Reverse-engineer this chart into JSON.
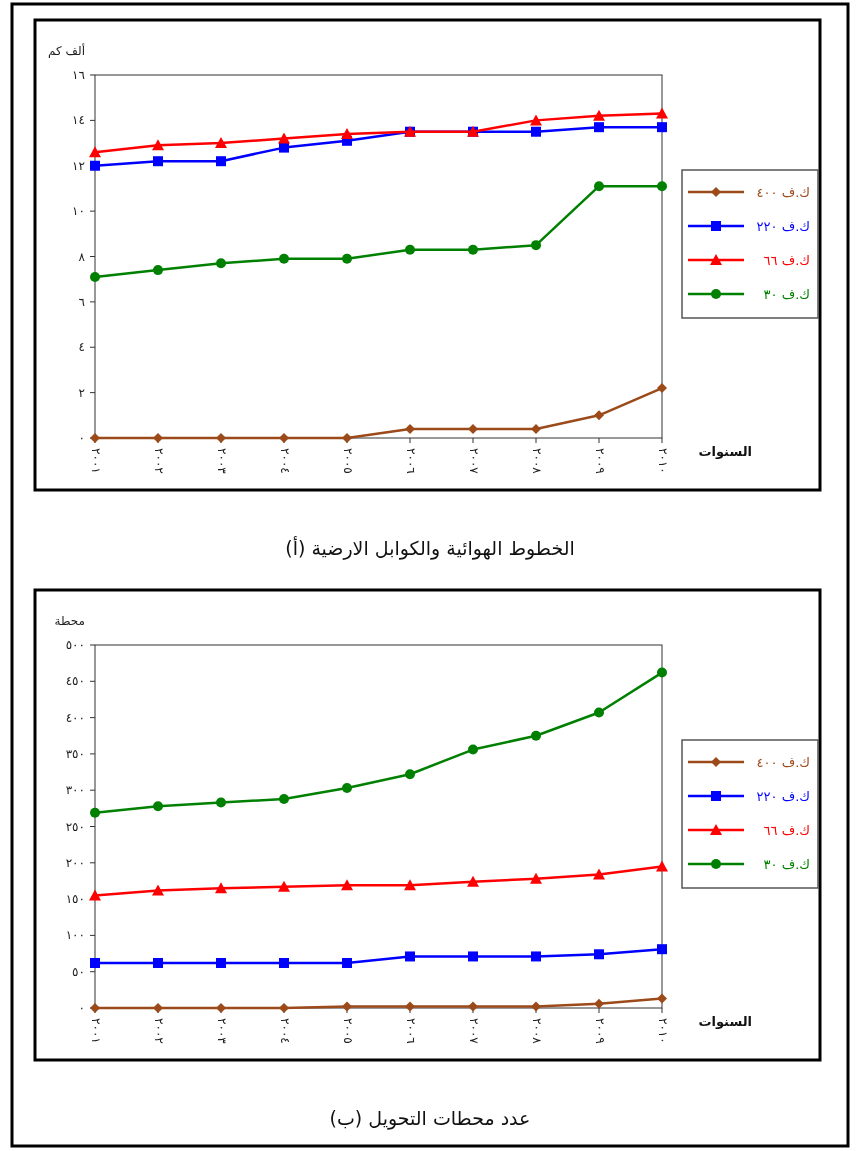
{
  "chart_data": [
    {
      "type": "line",
      "title": "(أ) الخطوط الهوائية والكوابل الارضية",
      "ylabel": "ألف كم",
      "xlabel": "السنوات",
      "categories": [
        "٢٠٠١",
        "٢٠٠٢",
        "٢٠٠٣",
        "٢٠٠٤",
        "٢٠٠٥",
        "٢٠٠٦",
        "٢٠٠٧",
        "٢٠٠٨",
        "٢٠٠٩",
        "٢٠١٠"
      ],
      "ylim": [
        0,
        16
      ],
      "yticks": [
        {
          "value": 0,
          "label": "٠"
        },
        {
          "value": 2,
          "label": "٢"
        },
        {
          "value": 4,
          "label": "٤"
        },
        {
          "value": 6,
          "label": "٦"
        },
        {
          "value": 8,
          "label": "٨"
        },
        {
          "value": 10,
          "label": "١٠"
        },
        {
          "value": 12,
          "label": "١٢"
        },
        {
          "value": 14,
          "label": "١٤"
        },
        {
          "value": 16,
          "label": "١٦"
        }
      ],
      "legend": "right",
      "line_style": "solid",
      "series": [
        {
          "name": "ك.ف ٤٠٠",
          "color": "#9c4a1a",
          "marker": "diamond",
          "values": [
            0,
            0,
            0,
            0,
            0,
            0.4,
            0.4,
            0.4,
            1.0,
            2.2
          ]
        },
        {
          "name": "ك.ف ٢٢٠",
          "color": "#0000ff",
          "marker": "square",
          "values": [
            12.0,
            12.2,
            12.2,
            12.8,
            13.1,
            13.5,
            13.5,
            13.5,
            13.7,
            13.7
          ]
        },
        {
          "name": "ك.ف ٦٦",
          "color": "#ff0000",
          "marker": "triangle",
          "values": [
            12.6,
            12.9,
            13.0,
            13.2,
            13.4,
            13.5,
            13.5,
            14.0,
            14.2,
            14.3
          ]
        },
        {
          "name": "ك.ف ٣٠",
          "color": "#008000",
          "marker": "circle",
          "values": [
            7.1,
            7.4,
            7.7,
            7.9,
            7.9,
            8.3,
            8.3,
            8.5,
            11.1,
            11.1
          ]
        }
      ]
    },
    {
      "type": "line",
      "title": "(ب) عدد محطات التحويل",
      "ylabel": "محطة",
      "xlabel": "السنوات",
      "categories": [
        "٢٠٠١",
        "٢٠٠٢",
        "٢٠٠٣",
        "٢٠٠٤",
        "٢٠٠٥",
        "٢٠٠٦",
        "٢٠٠٧",
        "٢٠٠٨",
        "٢٠٠٩",
        "٢٠١٠"
      ],
      "ylim": [
        0,
        500
      ],
      "yticks": [
        {
          "value": 0,
          "label": "٠"
        },
        {
          "value": 50,
          "label": "٥٠"
        },
        {
          "value": 100,
          "label": "١٠٠"
        },
        {
          "value": 150,
          "label": "١٥٠"
        },
        {
          "value": 200,
          "label": "٢٠٠"
        },
        {
          "value": 250,
          "label": "٢٥٠"
        },
        {
          "value": 300,
          "label": "٣٠٠"
        },
        {
          "value": 350,
          "label": "٣٥٠"
        },
        {
          "value": 400,
          "label": "٤٠٠"
        },
        {
          "value": 450,
          "label": "٤٥٠"
        },
        {
          "value": 500,
          "label": "٥٠٠"
        }
      ],
      "legend": "right",
      "line_style": "solid",
      "series": [
        {
          "name": "ك.ف ٤٠٠",
          "color": "#9c4a1a",
          "marker": "diamond",
          "values": [
            0,
            0,
            0,
            0,
            2,
            2,
            2,
            2,
            6,
            13
          ]
        },
        {
          "name": "ك.ف ٢٢٠",
          "color": "#0000ff",
          "marker": "square",
          "values": [
            62,
            62,
            62,
            62,
            62,
            71,
            71,
            71,
            74,
            81
          ]
        },
        {
          "name": "ك.ف ٦٦",
          "color": "#ff0000",
          "marker": "triangle",
          "values": [
            155,
            162,
            165,
            167,
            169,
            169,
            174,
            178,
            184,
            195
          ]
        },
        {
          "name": "ك.ف ٣٠",
          "color": "#008000",
          "marker": "circle",
          "values": [
            269,
            278,
            283,
            288,
            303,
            322,
            356,
            375,
            407,
            462
          ]
        }
      ]
    }
  ]
}
